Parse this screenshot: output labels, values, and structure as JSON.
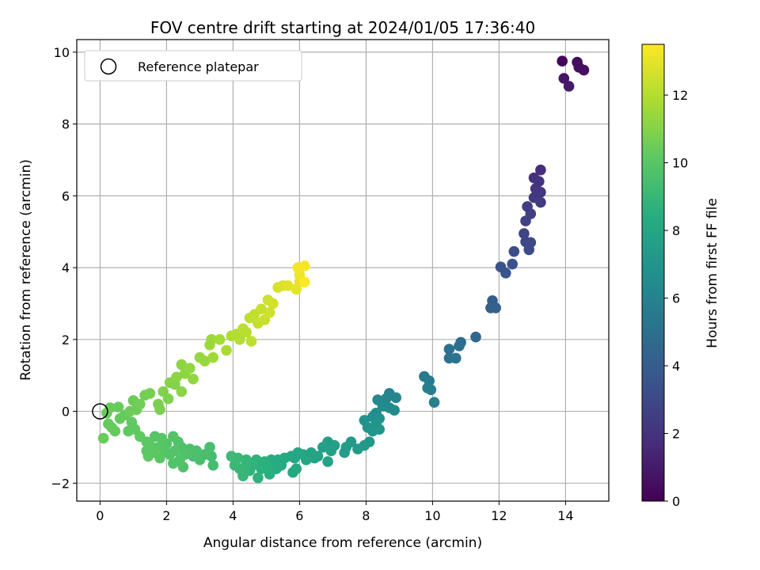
{
  "chart_data": {
    "type": "scatter",
    "title": "FOV centre drift starting at 2024/01/05 17:36:40",
    "xlabel": "Angular distance from reference (arcmin)",
    "ylabel": "Rotation from reference (arcmin)",
    "xlim": [
      -0.7,
      15.3
    ],
    "ylim": [
      -2.5,
      10.35
    ],
    "xticks": [
      0,
      2,
      4,
      6,
      8,
      10,
      12,
      14
    ],
    "yticks": [
      -2,
      0,
      2,
      4,
      6,
      8,
      10
    ],
    "grid": true,
    "legend": {
      "placement": "top-left",
      "entries": [
        "Reference platepar"
      ]
    },
    "reference_point": {
      "x": 0,
      "y": 0
    },
    "colorbar": {
      "label": "Hours from first FF file",
      "range": [
        0,
        13.5
      ],
      "ticks": [
        0,
        2,
        4,
        6,
        8,
        10,
        12
      ],
      "colormap": "viridis"
    },
    "points": [
      {
        "x": 13.9,
        "y": 9.75,
        "c": 0.2
      },
      {
        "x": 14.35,
        "y": 9.72,
        "c": 0.4
      },
      {
        "x": 14.55,
        "y": 9.5,
        "c": 0.6
      },
      {
        "x": 14.4,
        "y": 9.58,
        "c": 0.5
      },
      {
        "x": 13.95,
        "y": 9.27,
        "c": 0.8
      },
      {
        "x": 14.1,
        "y": 9.05,
        "c": 1.0
      },
      {
        "x": 13.25,
        "y": 6.72,
        "c": 1.8
      },
      {
        "x": 13.05,
        "y": 6.5,
        "c": 1.9
      },
      {
        "x": 13.2,
        "y": 6.4,
        "c": 2.0
      },
      {
        "x": 13.1,
        "y": 6.2,
        "c": 2.1
      },
      {
        "x": 13.25,
        "y": 6.1,
        "c": 2.2
      },
      {
        "x": 13.05,
        "y": 5.95,
        "c": 2.3
      },
      {
        "x": 13.25,
        "y": 5.82,
        "c": 2.4
      },
      {
        "x": 12.85,
        "y": 5.7,
        "c": 2.5
      },
      {
        "x": 12.95,
        "y": 5.5,
        "c": 2.6
      },
      {
        "x": 12.8,
        "y": 5.3,
        "c": 2.7
      },
      {
        "x": 12.75,
        "y": 4.95,
        "c": 2.8
      },
      {
        "x": 12.8,
        "y": 4.72,
        "c": 2.9
      },
      {
        "x": 12.95,
        "y": 4.7,
        "c": 3.0
      },
      {
        "x": 12.9,
        "y": 4.5,
        "c": 3.1
      },
      {
        "x": 12.45,
        "y": 4.45,
        "c": 3.2
      },
      {
        "x": 12.4,
        "y": 4.1,
        "c": 3.4
      },
      {
        "x": 12.05,
        "y": 4.02,
        "c": 3.5
      },
      {
        "x": 12.2,
        "y": 3.85,
        "c": 3.6
      },
      {
        "x": 11.8,
        "y": 3.08,
        "c": 4.0
      },
      {
        "x": 11.75,
        "y": 2.88,
        "c": 4.1
      },
      {
        "x": 11.9,
        "y": 2.88,
        "c": 4.2
      },
      {
        "x": 11.3,
        "y": 2.07,
        "c": 4.6
      },
      {
        "x": 10.85,
        "y": 1.92,
        "c": 4.8
      },
      {
        "x": 10.8,
        "y": 1.82,
        "c": 4.9
      },
      {
        "x": 10.5,
        "y": 1.73,
        "c": 5.0
      },
      {
        "x": 10.5,
        "y": 1.48,
        "c": 5.1
      },
      {
        "x": 10.7,
        "y": 1.48,
        "c": 5.2
      },
      {
        "x": 9.75,
        "y": 0.97,
        "c": 5.5
      },
      {
        "x": 9.9,
        "y": 0.85,
        "c": 5.6
      },
      {
        "x": 9.85,
        "y": 0.65,
        "c": 5.7
      },
      {
        "x": 9.95,
        "y": 0.6,
        "c": 5.8
      },
      {
        "x": 10.05,
        "y": 0.25,
        "c": 5.9
      },
      {
        "x": 8.7,
        "y": 0.5,
        "c": 6.1
      },
      {
        "x": 8.6,
        "y": 0.35,
        "c": 6.2
      },
      {
        "x": 8.9,
        "y": 0.38,
        "c": 6.2
      },
      {
        "x": 8.35,
        "y": 0.32,
        "c": 6.3
      },
      {
        "x": 8.5,
        "y": 0.15,
        "c": 6.4
      },
      {
        "x": 8.7,
        "y": 0.1,
        "c": 6.5
      },
      {
        "x": 8.85,
        "y": 0.03,
        "c": 6.5
      },
      {
        "x": 8.3,
        "y": -0.05,
        "c": 6.6
      },
      {
        "x": 8.2,
        "y": -0.15,
        "c": 6.7
      },
      {
        "x": 8.4,
        "y": -0.2,
        "c": 6.8
      },
      {
        "x": 7.95,
        "y": -0.25,
        "c": 6.9
      },
      {
        "x": 8.3,
        "y": -0.35,
        "c": 7.0
      },
      {
        "x": 8.05,
        "y": -0.45,
        "c": 7.0
      },
      {
        "x": 8.4,
        "y": -0.5,
        "c": 7.1
      },
      {
        "x": 8.2,
        "y": -0.55,
        "c": 7.1
      },
      {
        "x": 8.1,
        "y": -0.85,
        "c": 7.2
      },
      {
        "x": 7.95,
        "y": -0.95,
        "c": 7.3
      },
      {
        "x": 7.75,
        "y": -1.05,
        "c": 7.4
      },
      {
        "x": 7.55,
        "y": -0.85,
        "c": 7.4
      },
      {
        "x": 7.4,
        "y": -1.0,
        "c": 7.5
      },
      {
        "x": 7.35,
        "y": -1.15,
        "c": 7.5
      },
      {
        "x": 7.05,
        "y": -0.95,
        "c": 7.6
      },
      {
        "x": 6.85,
        "y": -0.85,
        "c": 7.6
      },
      {
        "x": 6.95,
        "y": -1.1,
        "c": 7.7
      },
      {
        "x": 6.7,
        "y": -1.0,
        "c": 7.7
      },
      {
        "x": 6.85,
        "y": -1.4,
        "c": 7.8
      },
      {
        "x": 6.55,
        "y": -1.25,
        "c": 7.8
      },
      {
        "x": 6.45,
        "y": -1.3,
        "c": 7.9
      },
      {
        "x": 6.35,
        "y": -1.15,
        "c": 7.9
      },
      {
        "x": 6.2,
        "y": -1.35,
        "c": 8.0
      },
      {
        "x": 6.1,
        "y": -1.2,
        "c": 8.0
      },
      {
        "x": 5.95,
        "y": -1.15,
        "c": 8.1
      },
      {
        "x": 5.85,
        "y": -1.3,
        "c": 8.1
      },
      {
        "x": 5.75,
        "y": -1.25,
        "c": 8.1
      },
      {
        "x": 5.9,
        "y": -1.6,
        "c": 8.2
      },
      {
        "x": 5.8,
        "y": -1.7,
        "c": 8.2
      },
      {
        "x": 5.55,
        "y": -1.3,
        "c": 8.2
      },
      {
        "x": 5.45,
        "y": -1.5,
        "c": 8.3
      },
      {
        "x": 5.35,
        "y": -1.35,
        "c": 8.3
      },
      {
        "x": 5.3,
        "y": -1.6,
        "c": 8.4
      },
      {
        "x": 5.15,
        "y": -1.35,
        "c": 8.4
      },
      {
        "x": 5.05,
        "y": -1.55,
        "c": 8.5
      },
      {
        "x": 5.1,
        "y": -1.75,
        "c": 8.5
      },
      {
        "x": 4.95,
        "y": -1.4,
        "c": 8.6
      },
      {
        "x": 4.85,
        "y": -1.6,
        "c": 8.6
      },
      {
        "x": 4.75,
        "y": -1.85,
        "c": 8.7
      },
      {
        "x": 4.7,
        "y": -1.35,
        "c": 8.7
      },
      {
        "x": 4.6,
        "y": -1.5,
        "c": 8.8
      },
      {
        "x": 4.5,
        "y": -1.65,
        "c": 8.8
      },
      {
        "x": 4.4,
        "y": -1.35,
        "c": 8.9
      },
      {
        "x": 4.35,
        "y": -1.55,
        "c": 8.9
      },
      {
        "x": 4.3,
        "y": -1.8,
        "c": 9.0
      },
      {
        "x": 4.2,
        "y": -1.6,
        "c": 9.0
      },
      {
        "x": 4.15,
        "y": -1.3,
        "c": 9.1
      },
      {
        "x": 4.05,
        "y": -1.5,
        "c": 9.1
      },
      {
        "x": 3.95,
        "y": -1.25,
        "c": 9.2
      },
      {
        "x": 3.4,
        "y": -1.5,
        "c": 9.4
      },
      {
        "x": 3.35,
        "y": -1.25,
        "c": 9.4
      },
      {
        "x": 3.3,
        "y": -1.0,
        "c": 9.5
      },
      {
        "x": 3.15,
        "y": -1.2,
        "c": 9.5
      },
      {
        "x": 3.0,
        "y": -1.35,
        "c": 9.5
      },
      {
        "x": 2.9,
        "y": -1.1,
        "c": 9.6
      },
      {
        "x": 2.8,
        "y": -1.25,
        "c": 9.6
      },
      {
        "x": 2.7,
        "y": -1.05,
        "c": 9.6
      },
      {
        "x": 2.55,
        "y": -1.2,
        "c": 9.7
      },
      {
        "x": 2.5,
        "y": -1.55,
        "c": 9.7
      },
      {
        "x": 2.45,
        "y": -1.0,
        "c": 9.7
      },
      {
        "x": 2.4,
        "y": -1.35,
        "c": 9.8
      },
      {
        "x": 2.35,
        "y": -0.85,
        "c": 9.8
      },
      {
        "x": 2.25,
        "y": -1.1,
        "c": 9.8
      },
      {
        "x": 2.2,
        "y": -1.45,
        "c": 9.8
      },
      {
        "x": 2.2,
        "y": -0.7,
        "c": 9.9
      },
      {
        "x": 2.1,
        "y": -1.2,
        "c": 9.9
      },
      {
        "x": 2.0,
        "y": -0.9,
        "c": 9.9
      },
      {
        "x": 1.95,
        "y": -1.1,
        "c": 9.9
      },
      {
        "x": 1.85,
        "y": -0.75,
        "c": 10.0
      },
      {
        "x": 1.8,
        "y": -1.3,
        "c": 10.0
      },
      {
        "x": 1.75,
        "y": -1.0,
        "c": 10.0
      },
      {
        "x": 1.65,
        "y": -0.7,
        "c": 10.0
      },
      {
        "x": 1.6,
        "y": -1.15,
        "c": 10.1
      },
      {
        "x": 1.5,
        "y": -0.95,
        "c": 10.1
      },
      {
        "x": 1.4,
        "y": -1.1,
        "c": 10.1
      },
      {
        "x": 1.4,
        "y": -0.85,
        "c": 10.1
      },
      {
        "x": 1.45,
        "y": -1.25,
        "c": 10.1
      },
      {
        "x": 1.2,
        "y": -0.7,
        "c": 10.2
      },
      {
        "x": 1.05,
        "y": -0.5,
        "c": 10.2
      },
      {
        "x": 0.95,
        "y": -0.3,
        "c": 10.2
      },
      {
        "x": 0.85,
        "y": -0.55,
        "c": 10.2
      },
      {
        "x": 0.75,
        "y": -0.1,
        "c": 10.3
      },
      {
        "x": 0.6,
        "y": -0.2,
        "c": 10.3
      },
      {
        "x": 0.45,
        "y": -0.55,
        "c": 10.3
      },
      {
        "x": 0.35,
        "y": -0.45,
        "c": 10.3
      },
      {
        "x": 0.25,
        "y": -0.35,
        "c": 10.3
      },
      {
        "x": 0.3,
        "y": 0.1,
        "c": 10.4
      },
      {
        "x": 0.2,
        "y": -0.05,
        "c": 10.4
      },
      {
        "x": 0.1,
        "y": -0.75,
        "c": 10.4
      },
      {
        "x": 0.55,
        "y": 0.12,
        "c": 10.4
      },
      {
        "x": 0.9,
        "y": 0.0,
        "c": 10.5
      },
      {
        "x": 1.0,
        "y": 0.3,
        "c": 10.5
      },
      {
        "x": 1.1,
        "y": 0.05,
        "c": 10.5
      },
      {
        "x": 1.2,
        "y": 0.2,
        "c": 10.6
      },
      {
        "x": 1.35,
        "y": 0.45,
        "c": 10.6
      },
      {
        "x": 1.5,
        "y": 0.5,
        "c": 10.7
      },
      {
        "x": 1.75,
        "y": 0.2,
        "c": 10.8
      },
      {
        "x": 1.8,
        "y": 0.05,
        "c": 10.8
      },
      {
        "x": 1.9,
        "y": 0.55,
        "c": 10.9
      },
      {
        "x": 2.05,
        "y": 0.35,
        "c": 10.9
      },
      {
        "x": 2.1,
        "y": 0.8,
        "c": 11.0
      },
      {
        "x": 2.25,
        "y": 0.75,
        "c": 11.0
      },
      {
        "x": 2.3,
        "y": 0.95,
        "c": 11.1
      },
      {
        "x": 2.45,
        "y": 0.55,
        "c": 11.1
      },
      {
        "x": 2.45,
        "y": 1.3,
        "c": 11.2
      },
      {
        "x": 2.55,
        "y": 1.05,
        "c": 11.2
      },
      {
        "x": 2.7,
        "y": 1.2,
        "c": 11.3
      },
      {
        "x": 2.8,
        "y": 0.9,
        "c": 11.3
      },
      {
        "x": 3.0,
        "y": 1.5,
        "c": 11.4
      },
      {
        "x": 3.15,
        "y": 1.4,
        "c": 11.4
      },
      {
        "x": 3.3,
        "y": 1.85,
        "c": 11.5
      },
      {
        "x": 3.35,
        "y": 2.0,
        "c": 11.5
      },
      {
        "x": 3.4,
        "y": 1.5,
        "c": 11.6
      },
      {
        "x": 3.6,
        "y": 2.0,
        "c": 11.7
      },
      {
        "x": 3.8,
        "y": 1.7,
        "c": 11.8
      },
      {
        "x": 3.95,
        "y": 2.1,
        "c": 11.9
      },
      {
        "x": 4.1,
        "y": 2.15,
        "c": 12.0
      },
      {
        "x": 4.2,
        "y": 2.0,
        "c": 12.0
      },
      {
        "x": 4.3,
        "y": 2.3,
        "c": 12.1
      },
      {
        "x": 4.4,
        "y": 2.2,
        "c": 12.1
      },
      {
        "x": 4.5,
        "y": 2.6,
        "c": 12.2
      },
      {
        "x": 4.55,
        "y": 1.95,
        "c": 12.2
      },
      {
        "x": 4.65,
        "y": 2.7,
        "c": 12.3
      },
      {
        "x": 4.75,
        "y": 2.45,
        "c": 12.3
      },
      {
        "x": 4.85,
        "y": 2.85,
        "c": 12.4
      },
      {
        "x": 4.95,
        "y": 2.55,
        "c": 12.4
      },
      {
        "x": 5.05,
        "y": 3.1,
        "c": 12.5
      },
      {
        "x": 5.1,
        "y": 2.75,
        "c": 12.5
      },
      {
        "x": 5.2,
        "y": 3.0,
        "c": 12.6
      },
      {
        "x": 5.35,
        "y": 3.45,
        "c": 12.7
      },
      {
        "x": 5.5,
        "y": 3.5,
        "c": 12.8
      },
      {
        "x": 5.65,
        "y": 3.5,
        "c": 12.9
      },
      {
        "x": 5.9,
        "y": 3.4,
        "c": 13.0
      },
      {
        "x": 6.0,
        "y": 3.6,
        "c": 13.1
      },
      {
        "x": 6.0,
        "y": 3.8,
        "c": 13.2
      },
      {
        "x": 5.95,
        "y": 4.0,
        "c": 13.3
      },
      {
        "x": 6.15,
        "y": 4.05,
        "c": 13.4
      },
      {
        "x": 6.15,
        "y": 3.6,
        "c": 13.5
      }
    ]
  }
}
